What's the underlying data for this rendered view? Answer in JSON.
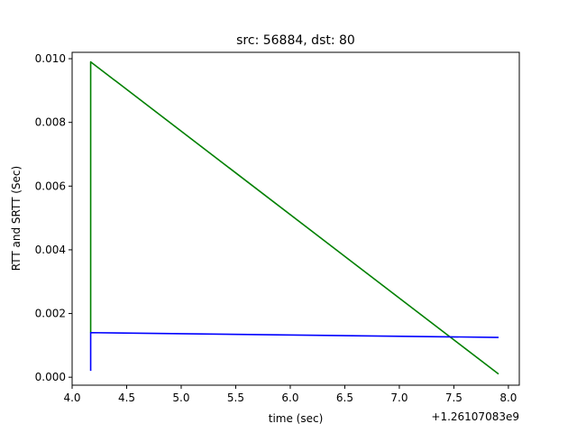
{
  "chart_data": {
    "type": "line",
    "title": "src: 56884, dst: 80",
    "xlabel": "time (sec)",
    "ylabel": "RTT and SRTT (Sec)",
    "x_offset_label": "+1.26107083e9",
    "xlim": [
      4.0,
      8.1
    ],
    "ylim": [
      -0.00025,
      0.0102
    ],
    "x_ticks": [
      4.0,
      4.5,
      5.0,
      5.5,
      6.0,
      6.5,
      7.0,
      7.5,
      8.0
    ],
    "x_tick_labels": [
      "4.0",
      "4.5",
      "5.0",
      "5.5",
      "6.0",
      "6.5",
      "7.0",
      "7.5",
      "8.0"
    ],
    "y_ticks": [
      0.0,
      0.002,
      0.004,
      0.006,
      0.008,
      0.01
    ],
    "y_tick_labels": [
      "0.000",
      "0.002",
      "0.004",
      "0.006",
      "0.008",
      "0.010"
    ],
    "grid": false,
    "legend": "none",
    "series": [
      {
        "color": "#008000",
        "x": [
          4.17,
          4.17,
          7.91
        ],
        "y": [
          0.0014,
          0.0099,
          0.0001
        ]
      },
      {
        "color": "#0000ff",
        "x": [
          4.17,
          4.17,
          7.91
        ],
        "y": [
          0.0002,
          0.0014,
          0.00125
        ]
      }
    ]
  }
}
